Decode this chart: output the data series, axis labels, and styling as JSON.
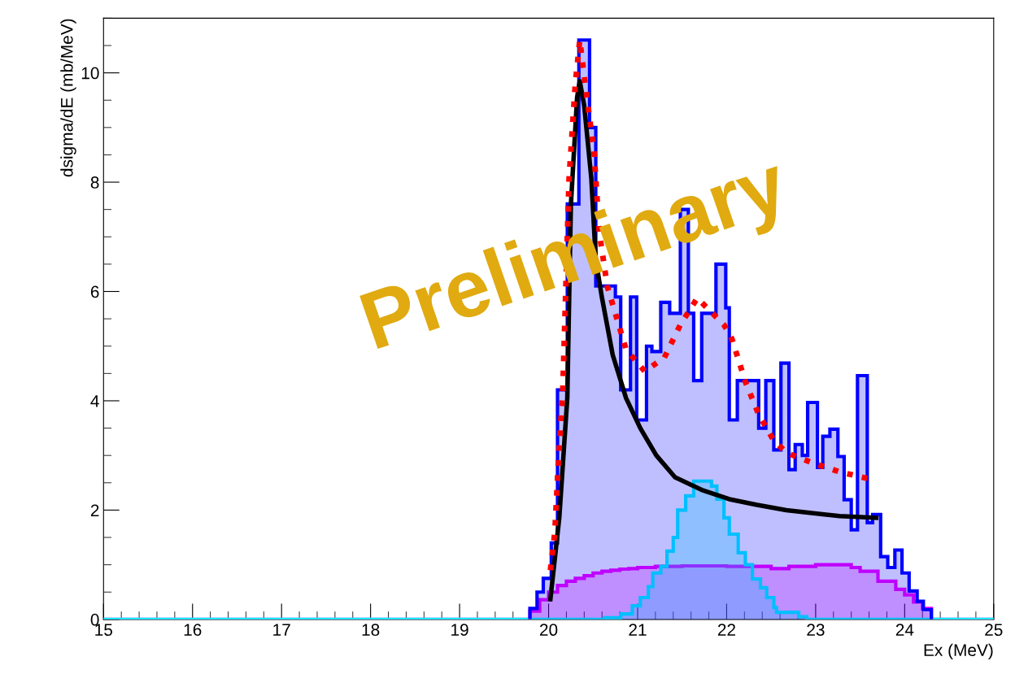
{
  "chart_data": {
    "type": "histogram",
    "xlabel": "Ex (MeV)",
    "ylabel": "dsigma/dE (mb/MeV)",
    "xlim": [
      15,
      25
    ],
    "xticks": [
      15,
      16,
      17,
      18,
      19,
      20,
      21,
      22,
      23,
      24,
      25
    ],
    "ylim": [
      0,
      11
    ],
    "yticks": [
      0,
      2,
      4,
      6,
      8,
      10
    ],
    "grid": false,
    "legend": false,
    "annotations": [
      "Preliminary"
    ],
    "series": [
      {
        "color": "#ff00ff",
        "bins": [
          15,
          19.79,
          19.9,
          20.0,
          20.1,
          20.2,
          20.3,
          20.4,
          20.5,
          20.6,
          20.7,
          20.8,
          20.9,
          21.0,
          21.2,
          21.5,
          22.0,
          22.5,
          22.7,
          23.0,
          23.4,
          23.5,
          23.7,
          23.9,
          24.0,
          24.1,
          24.2,
          24.3,
          25
        ],
        "values": [
          0,
          0.15,
          0.36,
          0.5,
          0.62,
          0.7,
          0.75,
          0.8,
          0.85,
          0.88,
          0.9,
          0.92,
          0.93,
          0.95,
          0.97,
          0.98,
          0.97,
          0.93,
          0.97,
          1.0,
          0.95,
          0.88,
          0.7,
          0.55,
          0.45,
          0.32,
          0.2,
          0
        ]
      },
      {
        "color": "#00ffff",
        "bins": [
          15,
          20.63,
          20.81,
          20.94,
          21.03,
          21.12,
          21.17,
          21.26,
          21.33,
          21.4,
          21.45,
          21.54,
          21.63,
          21.83,
          21.89,
          21.97,
          22.03,
          22.13,
          22.21,
          22.29,
          22.38,
          22.45,
          22.53,
          22.56,
          22.81,
          22.9,
          25
        ],
        "values": [
          0,
          0.03,
          0.1,
          0.25,
          0.4,
          0.6,
          0.85,
          0.97,
          1.25,
          1.5,
          2.0,
          2.26,
          2.53,
          2.44,
          2.2,
          1.86,
          1.56,
          1.22,
          1.0,
          0.74,
          0.58,
          0.4,
          0.22,
          0.13,
          0.05,
          0
        ]
      },
      {
        "color": "#0000ff",
        "bins": [
          19.79,
          19.87,
          19.94,
          20.03,
          20.1,
          20.21,
          20.34,
          20.46,
          20.53,
          20.75,
          20.81,
          20.92,
          20.99,
          21.1,
          21.16,
          21.26,
          21.36,
          21.48,
          21.57,
          21.63,
          21.72,
          21.88,
          21.99,
          22.03,
          22.12,
          22.36,
          22.44,
          22.53,
          22.61,
          22.7,
          22.77,
          22.85,
          22.91,
          23.02,
          23.08,
          23.16,
          23.25,
          23.32,
          23.4,
          23.47,
          23.58,
          23.64,
          23.73,
          23.81,
          23.89,
          23.97,
          24.05,
          24.14,
          24.21,
          24.3
        ],
        "values": [
          0.2,
          0.5,
          0.75,
          1.4,
          4.2,
          7.6,
          10.6,
          9.0,
          6.1,
          5.9,
          4.2,
          5.9,
          3.65,
          5.0,
          4.9,
          5.8,
          5.6,
          7.5,
          5.6,
          4.37,
          5.6,
          6.5,
          5.7,
          3.65,
          4.37,
          3.5,
          4.37,
          3.1,
          4.69,
          2.74,
          3.2,
          3.0,
          3.97,
          2.78,
          3.35,
          3.48,
          2.98,
          2.19,
          1.64,
          4.46,
          1.77,
          1.92,
          1.15,
          0.95,
          1.27,
          0.85,
          0.52,
          0.33,
          0.18
        ]
      },
      {
        "type": "line",
        "color": "#000000",
        "line_style": "solid",
        "x": [
          20.02,
          20.12,
          20.21,
          20.25,
          20.32,
          20.35,
          20.4,
          20.48,
          20.53,
          20.6,
          20.72,
          20.87,
          21.03,
          21.21,
          21.42,
          21.72,
          22.03,
          22.33,
          22.67,
          23.27,
          23.68
        ],
        "values": [
          0.37,
          1.86,
          4.05,
          7.57,
          9.55,
          9.85,
          9.4,
          8.07,
          6.58,
          5.88,
          4.84,
          4.05,
          3.5,
          3.0,
          2.6,
          2.37,
          2.2,
          2.1,
          2.0,
          1.89,
          1.86
        ]
      },
      {
        "type": "line",
        "color": "#ff0000",
        "line_style": "dotted",
        "x": [
          20.02,
          20.07,
          20.11,
          20.16,
          20.23,
          20.3,
          20.35,
          20.43,
          20.51,
          20.57,
          20.66,
          20.87,
          21.08,
          21.3,
          21.48,
          21.67,
          21.97,
          22.06,
          22.21,
          22.36,
          22.52,
          22.67,
          22.97,
          23.27,
          23.63
        ],
        "values": [
          0.9,
          1.6,
          2.9,
          4.24,
          8.07,
          9.8,
          10.6,
          9.55,
          8.56,
          7.07,
          6.09,
          4.94,
          4.54,
          4.79,
          5.39,
          5.88,
          5.39,
          5.13,
          4.35,
          3.75,
          3.3,
          3.05,
          2.86,
          2.7,
          2.56
        ]
      }
    ]
  }
}
